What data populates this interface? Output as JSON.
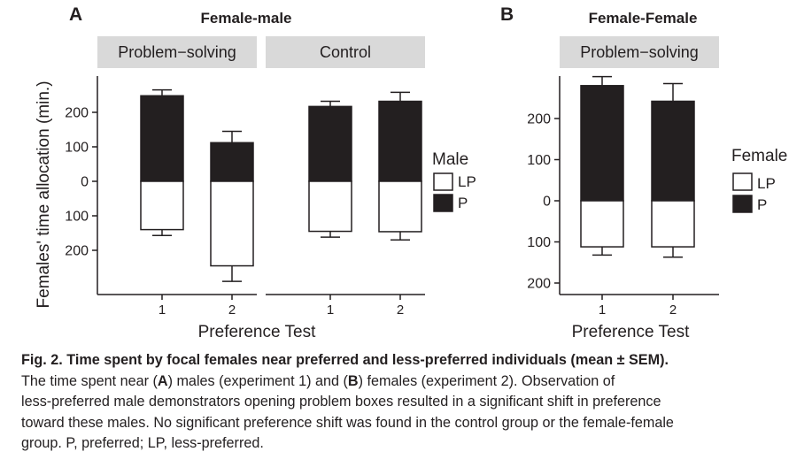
{
  "figure": {
    "ylabel": "Females' time allocation (min.)",
    "xlabel": "Preference Test"
  },
  "chart_data": [
    {
      "type": "bar",
      "panel": "A",
      "title": "Female-male",
      "facets": [
        "Problem−solving",
        "Control"
      ],
      "categories": [
        "1",
        "2"
      ],
      "xlabel": "Preference Test",
      "ylabel": "Females' time allocation (min.)",
      "ylim": [
        -290,
        300
      ],
      "yticks": [
        -200,
        -100,
        0,
        100,
        200
      ],
      "ytick_labels": [
        "200",
        "100",
        "0",
        "100",
        "200"
      ],
      "legend": {
        "title": "Male",
        "placement": "right",
        "entries": [
          {
            "label": "LP",
            "color": "#ffffff"
          },
          {
            "label": "P",
            "color": "#231f20"
          }
        ]
      },
      "series": [
        {
          "name": "P",
          "color": "#231f20",
          "values": {
            "Problem−solving": {
              "1": 248,
              "2": 112
            },
            "Control": {
              "1": 217,
              "2": 232
            }
          }
        },
        {
          "name": "LP",
          "color": "#ffffff",
          "values": {
            "Problem−solving": {
              "1": -140,
              "2": -245
            },
            "Control": {
              "1": -145,
              "2": -146
            }
          }
        }
      ],
      "error_bars": {
        "P": {
          "Problem−solving": {
            "1": 265,
            "2": 145
          },
          "Control": {
            "1": 232,
            "2": 258
          }
        },
        "LP": {
          "Problem−solving": {
            "1": -157,
            "2": -290
          },
          "Control": {
            "1": -162,
            "2": -170
          }
        }
      },
      "grid": false
    },
    {
      "type": "bar",
      "panel": "B",
      "title": "Female-Female",
      "facets": [
        "Problem−solving"
      ],
      "categories": [
        "1",
        "2"
      ],
      "xlabel": "Preference Test",
      "ylabel": "",
      "ylim": [
        -220,
        300
      ],
      "yticks": [
        -200,
        -100,
        0,
        100,
        200
      ],
      "ytick_labels": [
        "200",
        "100",
        "0",
        "100",
        "200"
      ],
      "legend": {
        "title": "Female",
        "placement": "right",
        "entries": [
          {
            "label": "LP",
            "color": "#ffffff"
          },
          {
            "label": "P",
            "color": "#231f20"
          }
        ]
      },
      "series": [
        {
          "name": "P",
          "color": "#231f20",
          "values": {
            "Problem−solving": {
              "1": 280,
              "2": 242
            }
          }
        },
        {
          "name": "LP",
          "color": "#ffffff",
          "values": {
            "Problem−solving": {
              "1": -112,
              "2": -112
            }
          }
        }
      ],
      "error_bars": {
        "P": {
          "Problem−solving": {
            "1": 302,
            "2": 285
          }
        },
        "LP": {
          "Problem−solving": {
            "1": -132,
            "2": -137
          }
        }
      },
      "grid": false
    }
  ],
  "caption": {
    "title": "Fig. 2. Time spent by focal females near preferred and less-preferred individuals (mean ± SEM).",
    "line1_a": "The time spent near (",
    "line1_b": "A",
    "line1_c": ") males (experiment 1) and (",
    "line1_d": "B",
    "line1_e": ") females (experiment 2). Observation of",
    "line2": "less-preferred male demonstrators opening problem boxes resulted in a significant shift in preference",
    "line3": "toward these males. No significant preference shift was found in the control group or the female-female",
    "line4": "group. P, preferred; LP, less-preferred."
  },
  "colors": {
    "ink": "#231f20",
    "strip": "#d9d9d9",
    "background": "#ffffff"
  }
}
